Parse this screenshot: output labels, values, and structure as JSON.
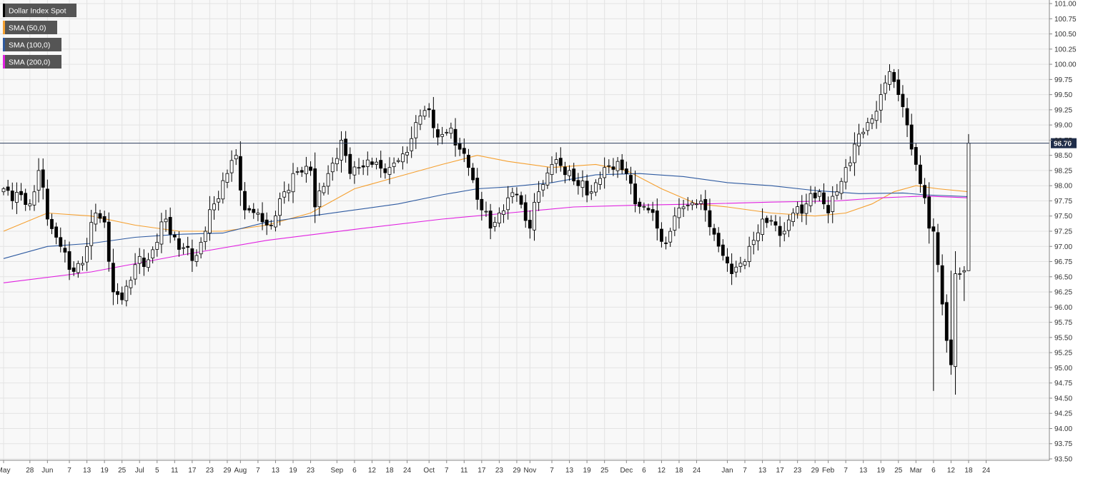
{
  "colors": {
    "background": "#ffffff",
    "plot_bg": "#f8f8f8",
    "grid": "#e3e3e3",
    "axis_text": "#333333",
    "candle_up_fill": "#ffffff",
    "candle_down_fill": "#000000",
    "candle_stroke": "#000000",
    "sma50": "#f5a030",
    "sma100": "#2e5aa0",
    "sma200": "#e020e0",
    "legend_bg": "#555555",
    "legend_text": "#ffffff",
    "price_line": "#2d3e5e",
    "price_label_bg": "#1f2d4a",
    "price_label_text": "#ffffff"
  },
  "chart_data": {
    "type": "candlestick",
    "legend_position": "top-left",
    "legend": [
      {
        "label": "Dollar Index Spot",
        "color": "#000000"
      },
      {
        "label": "SMA (50,0)",
        "color": "#f5a030"
      },
      {
        "label": "SMA (100,0)",
        "color": "#2e5aa0"
      },
      {
        "label": "SMA (200,0)",
        "color": "#e020e0"
      }
    ],
    "y_axis": {
      "position": "right",
      "range": [
        93.5,
        101.0
      ],
      "ticks": [
        "101.00",
        "100.75",
        "100.50",
        "100.25",
        "100.00",
        "99.75",
        "99.50",
        "99.25",
        "99.00",
        "98.75",
        "98.50",
        "98.25",
        "98.00",
        "97.75",
        "97.50",
        "97.25",
        "97.00",
        "96.75",
        "96.50",
        "96.25",
        "96.00",
        "95.75",
        "95.50",
        "95.25",
        "95.00",
        "94.75",
        "94.50",
        "94.25",
        "94.00",
        "93.75",
        "93.50"
      ]
    },
    "x_axis": {
      "bar_range": [
        0,
        235
      ],
      "ticks": [
        {
          "label": "May",
          "bar": 0
        },
        {
          "label": "28",
          "bar": 6
        },
        {
          "label": "Jun",
          "bar": 10
        },
        {
          "label": "7",
          "bar": 15
        },
        {
          "label": "13",
          "bar": 19
        },
        {
          "label": "19",
          "bar": 23
        },
        {
          "label": "25",
          "bar": 27
        },
        {
          "label": "Jul",
          "bar": 31
        },
        {
          "label": "5",
          "bar": 35
        },
        {
          "label": "11",
          "bar": 39
        },
        {
          "label": "17",
          "bar": 43
        },
        {
          "label": "23",
          "bar": 47
        },
        {
          "label": "29",
          "bar": 51
        },
        {
          "label": "Aug",
          "bar": 54
        },
        {
          "label": "7",
          "bar": 58
        },
        {
          "label": "13",
          "bar": 62
        },
        {
          "label": "19",
          "bar": 66
        },
        {
          "label": "23",
          "bar": 70
        },
        {
          "label": "Sep",
          "bar": 76
        },
        {
          "label": "6",
          "bar": 80
        },
        {
          "label": "12",
          "bar": 84
        },
        {
          "label": "18",
          "bar": 88
        },
        {
          "label": "24",
          "bar": 92
        },
        {
          "label": "Oct",
          "bar": 97
        },
        {
          "label": "7",
          "bar": 101
        },
        {
          "label": "11",
          "bar": 105
        },
        {
          "label": "17",
          "bar": 109
        },
        {
          "label": "23",
          "bar": 113
        },
        {
          "label": "29",
          "bar": 117
        },
        {
          "label": "Nov",
          "bar": 120
        },
        {
          "label": "7",
          "bar": 125
        },
        {
          "label": "13",
          "bar": 129
        },
        {
          "label": "19",
          "bar": 133
        },
        {
          "label": "25",
          "bar": 137
        },
        {
          "label": "Dec",
          "bar": 142
        },
        {
          "label": "6",
          "bar": 146
        },
        {
          "label": "12",
          "bar": 150
        },
        {
          "label": "18",
          "bar": 154
        },
        {
          "label": "24",
          "bar": 158
        },
        {
          "label": "Jan",
          "bar": 165
        },
        {
          "label": "7",
          "bar": 169
        },
        {
          "label": "13",
          "bar": 173
        },
        {
          "label": "17",
          "bar": 177
        },
        {
          "label": "23",
          "bar": 181
        },
        {
          "label": "29",
          "bar": 185
        },
        {
          "label": "Feb",
          "bar": 188
        },
        {
          "label": "7",
          "bar": 192
        },
        {
          "label": "13",
          "bar": 196
        },
        {
          "label": "19",
          "bar": 200
        },
        {
          "label": "25",
          "bar": 204
        },
        {
          "label": "Mar",
          "bar": 208
        },
        {
          "label": "6",
          "bar": 212
        },
        {
          "label": "12",
          "bar": 216
        },
        {
          "label": "18",
          "bar": 220
        },
        {
          "label": "24",
          "bar": 224
        }
      ]
    },
    "grid": true,
    "current_price": {
      "value": 98.7,
      "label": "98.70"
    },
    "series": [
      {
        "name": "Dollar Index Spot",
        "anchors": [
          [
            0,
            97.95
          ],
          [
            6,
            97.7
          ],
          [
            8,
            98.25
          ],
          [
            10,
            97.45
          ],
          [
            13,
            97.0
          ],
          [
            15,
            96.62
          ],
          [
            18,
            96.72
          ],
          [
            21,
            97.55
          ],
          [
            23,
            97.4
          ],
          [
            25,
            96.25
          ],
          [
            27,
            96.12
          ],
          [
            30,
            96.7
          ],
          [
            33,
            96.78
          ],
          [
            37,
            97.45
          ],
          [
            40,
            96.95
          ],
          [
            44,
            96.85
          ],
          [
            48,
            97.7
          ],
          [
            51,
            98.2
          ],
          [
            53,
            98.5
          ],
          [
            55,
            97.6
          ],
          [
            58,
            97.55
          ],
          [
            61,
            97.35
          ],
          [
            64,
            97.9
          ],
          [
            66,
            98.2
          ],
          [
            70,
            98.25
          ],
          [
            71,
            97.65
          ],
          [
            74,
            98.2
          ],
          [
            77,
            98.75
          ],
          [
            79,
            98.2
          ],
          [
            81,
            98.3
          ],
          [
            84,
            98.35
          ],
          [
            88,
            98.3
          ],
          [
            92,
            98.55
          ],
          [
            95,
            99.15
          ],
          [
            97,
            99.25
          ],
          [
            99,
            98.8
          ],
          [
            102,
            98.95
          ],
          [
            104,
            98.6
          ],
          [
            106,
            98.3
          ],
          [
            109,
            97.6
          ],
          [
            111,
            97.3
          ],
          [
            113,
            97.55
          ],
          [
            115,
            97.8
          ],
          [
            117,
            97.85
          ],
          [
            120,
            97.3
          ],
          [
            122,
            97.9
          ],
          [
            125,
            98.35
          ],
          [
            129,
            98.25
          ],
          [
            131,
            98.0
          ],
          [
            134,
            97.9
          ],
          [
            137,
            98.3
          ],
          [
            140,
            98.4
          ],
          [
            142,
            98.2
          ],
          [
            144,
            97.7
          ],
          [
            147,
            97.6
          ],
          [
            149,
            97.3
          ],
          [
            151,
            97.05
          ],
          [
            153,
            97.5
          ],
          [
            155,
            97.65
          ],
          [
            158,
            97.7
          ],
          [
            160,
            97.6
          ],
          [
            162,
            97.2
          ],
          [
            164,
            96.85
          ],
          [
            166,
            96.55
          ],
          [
            169,
            96.75
          ],
          [
            171,
            97.1
          ],
          [
            173,
            97.45
          ],
          [
            176,
            97.35
          ],
          [
            178,
            97.25
          ],
          [
            180,
            97.55
          ],
          [
            183,
            97.7
          ],
          [
            186,
            97.9
          ],
          [
            188,
            97.55
          ],
          [
            190,
            97.9
          ],
          [
            192,
            98.3
          ],
          [
            195,
            98.85
          ],
          [
            198,
            99.1
          ],
          [
            200,
            99.5
          ],
          [
            202,
            99.88
          ],
          [
            204,
            99.5
          ],
          [
            206,
            99.0
          ],
          [
            208,
            98.35
          ],
          [
            210,
            97.8
          ],
          [
            211,
            97.3
          ],
          [
            212,
            97.25
          ],
          [
            213,
            96.7
          ],
          [
            214,
            96.05
          ],
          [
            215,
            95.45
          ],
          [
            216,
            95.05
          ],
          [
            217,
            96.55
          ],
          [
            218,
            96.55
          ],
          [
            219,
            96.6
          ],
          [
            220,
            98.7
          ]
        ]
      },
      {
        "name": "SMA (50,0)",
        "points": [
          [
            0,
            97.25
          ],
          [
            10,
            97.55
          ],
          [
            20,
            97.5
          ],
          [
            30,
            97.35
          ],
          [
            40,
            97.25
          ],
          [
            50,
            97.25
          ],
          [
            60,
            97.35
          ],
          [
            70,
            97.55
          ],
          [
            80,
            97.95
          ],
          [
            90,
            98.15
          ],
          [
            100,
            98.35
          ],
          [
            108,
            98.5
          ],
          [
            115,
            98.4
          ],
          [
            125,
            98.3
          ],
          [
            135,
            98.35
          ],
          [
            142,
            98.25
          ],
          [
            150,
            97.95
          ],
          [
            158,
            97.7
          ],
          [
            165,
            97.65
          ],
          [
            175,
            97.55
          ],
          [
            185,
            97.5
          ],
          [
            192,
            97.55
          ],
          [
            198,
            97.7
          ],
          [
            203,
            97.9
          ],
          [
            208,
            98.0
          ],
          [
            213,
            97.95
          ],
          [
            220,
            97.9
          ]
        ]
      },
      {
        "name": "SMA (100,0)",
        "points": [
          [
            0,
            96.8
          ],
          [
            10,
            97.0
          ],
          [
            20,
            97.05
          ],
          [
            30,
            97.15
          ],
          [
            40,
            97.2
          ],
          [
            50,
            97.22
          ],
          [
            60,
            97.4
          ],
          [
            70,
            97.5
          ],
          [
            80,
            97.6
          ],
          [
            90,
            97.7
          ],
          [
            100,
            97.85
          ],
          [
            108,
            97.95
          ],
          [
            115,
            97.98
          ],
          [
            125,
            98.05
          ],
          [
            135,
            98.18
          ],
          [
            145,
            98.2
          ],
          [
            155,
            98.15
          ],
          [
            165,
            98.05
          ],
          [
            175,
            98.0
          ],
          [
            185,
            97.92
          ],
          [
            195,
            97.87
          ],
          [
            205,
            97.88
          ],
          [
            210,
            97.85
          ],
          [
            220,
            97.82
          ]
        ]
      },
      {
        "name": "SMA (200,0)",
        "points": [
          [
            0,
            96.4
          ],
          [
            20,
            96.58
          ],
          [
            40,
            96.85
          ],
          [
            60,
            97.1
          ],
          [
            80,
            97.28
          ],
          [
            100,
            97.45
          ],
          [
            115,
            97.55
          ],
          [
            130,
            97.65
          ],
          [
            145,
            97.68
          ],
          [
            160,
            97.7
          ],
          [
            175,
            97.73
          ],
          [
            190,
            97.75
          ],
          [
            200,
            97.8
          ],
          [
            210,
            97.83
          ],
          [
            220,
            97.8
          ]
        ]
      }
    ]
  }
}
